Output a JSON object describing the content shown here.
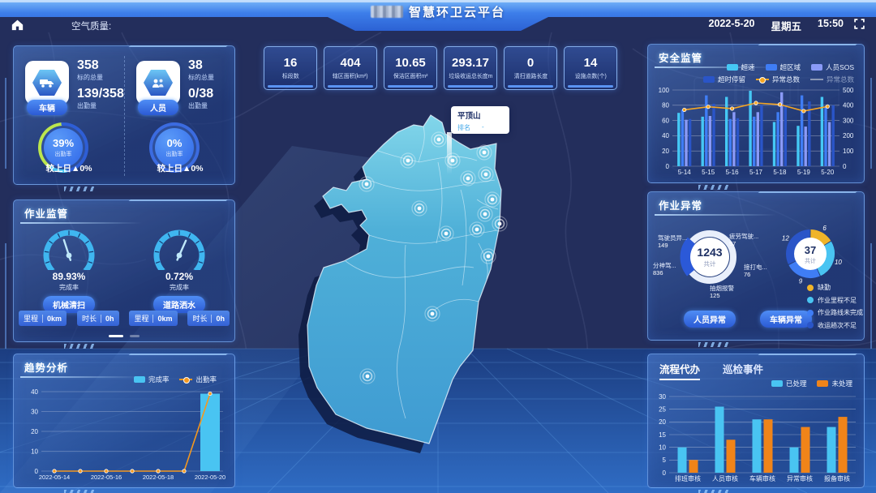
{
  "header": {
    "title": "智慧环卫云平台",
    "air_quality_label": "空气质量:",
    "date": "2022-5-20",
    "weekday": "星期五",
    "time": "15:50"
  },
  "kpis": [
    {
      "value": "16",
      "label": "标段数"
    },
    {
      "value": "404",
      "label": "辖区面积(km²)"
    },
    {
      "value": "10.65",
      "label": "保洁区面积m²"
    },
    {
      "value": "293.17",
      "label": "垃圾收运总长度m"
    },
    {
      "value": "0",
      "label": "清扫道路长度"
    },
    {
      "value": "14",
      "label": "设施点数(个)"
    }
  ],
  "attendance": {
    "vehicle": {
      "tag": "车辆",
      "total": "358",
      "total_label": "标的总量",
      "attend": "139/358",
      "attend_label": "出勤量",
      "rate": "39%",
      "rate_value": 39,
      "rate_label": "出勤率",
      "compare": "较上日▲0%"
    },
    "person": {
      "tag": "人员",
      "total": "38",
      "total_label": "标的总量",
      "attend": "0/38",
      "attend_label": "出勤量",
      "rate": "0%",
      "rate_value": 0,
      "rate_label": "出勤率",
      "compare": "较上日▲0%"
    }
  },
  "operation": {
    "title": "作业监管",
    "gauges": [
      {
        "value": "89.93%",
        "label": "完成率",
        "name": "机械清扫",
        "needle_deg": -18,
        "mileage_label": "里程",
        "mileage": "0km",
        "duration_label": "时长",
        "duration": "0h"
      },
      {
        "value": "0.72%",
        "label": "完成率",
        "name": "道路洒水",
        "needle_deg": 24,
        "mileage_label": "里程",
        "mileage": "0km",
        "duration_label": "时长",
        "duration": "0h"
      }
    ]
  },
  "trend": {
    "title": "趋势分析",
    "chart": {
      "type": "bar+line",
      "categories": [
        "2022-05-14",
        "2022-05-15",
        "2022-05-16",
        "2022-05-17",
        "2022-05-18",
        "2022-05-19",
        "2022-05-20"
      ],
      "x_tick_indices": [
        0,
        2,
        4,
        6
      ],
      "series": [
        {
          "name": "完成率",
          "type": "bar",
          "color": "#49c4f2",
          "values": [
            0,
            0,
            0,
            0,
            0,
            0,
            39
          ]
        },
        {
          "name": "出勤率",
          "type": "line",
          "color": "#f5981e",
          "values": [
            0,
            0,
            0,
            0,
            0,
            0,
            39
          ]
        }
      ],
      "ylim": [
        0,
        40
      ],
      "ystep": 10
    }
  },
  "safety": {
    "title": "安全监管",
    "chart": {
      "type": "bar+line",
      "categories": [
        "5-14",
        "5-15",
        "5-16",
        "5-17",
        "5-18",
        "5-19",
        "5-20"
      ],
      "series": [
        {
          "name": "超速",
          "type": "bar",
          "color": "#45c8f5",
          "values": [
            70,
            65,
            91,
            99,
            58,
            53,
            91
          ]
        },
        {
          "name": "超区域",
          "type": "bar",
          "color": "#3f7df5",
          "values": [
            74,
            93,
            62,
            65,
            71,
            93,
            78
          ]
        },
        {
          "name": "人员SOS",
          "type": "bar",
          "color": "#8a9af7",
          "values": [
            61,
            66,
            71,
            71,
            97,
            52,
            58
          ]
        },
        {
          "name": "超时停留",
          "type": "bar",
          "color": "#2a55c8",
          "values": [
            62,
            82,
            63,
            80,
            80,
            85,
            80
          ]
        },
        {
          "name": "异常总数",
          "type": "line",
          "axis": "right",
          "color": "#f5a623",
          "values": [
            370,
            390,
            378,
            415,
            405,
            362,
            392
          ]
        }
      ],
      "disabled_legend": "异常总数",
      "ylim": [
        0,
        100
      ],
      "ystep": 20,
      "y2lim": [
        0,
        500
      ],
      "y2step": 100
    }
  },
  "abnormal": {
    "title": "作业异常",
    "person_donut": {
      "total": "1243",
      "total_label": "共计",
      "button": "人员异常",
      "slices": [
        {
          "label": "驾驶员异...",
          "value": 149
        },
        {
          "label": "疲劳驾驶...",
          "value": 57
        },
        {
          "label": "分神驾...",
          "value": 836
        },
        {
          "label": "接打电...",
          "value": 76
        },
        {
          "label": "抽烟报警",
          "value": 125
        }
      ]
    },
    "vehicle_donut": {
      "total": "37",
      "total_label": "共计",
      "button": "车辆异常",
      "slices": [
        {
          "label": "缺勤",
          "value": 6,
          "color": "#f0b429"
        },
        {
          "label": "作业里程不足",
          "value": 10,
          "color": "#49c4f2"
        },
        {
          "label": "作业路线未完成",
          "value": 9,
          "color": "#3f7df5"
        },
        {
          "label": "收运趟次不足",
          "value": 12,
          "color": "#2a55c8"
        }
      ]
    }
  },
  "todo": {
    "tabs": [
      "流程代办",
      "巡检事件"
    ],
    "chart": {
      "type": "bar",
      "categories": [
        "排班审核",
        "人员审核",
        "车辆审核",
        "异常审核",
        "报备审核"
      ],
      "series": [
        {
          "name": "已处理",
          "type": "bar",
          "color": "#49c4f2",
          "values": [
            10,
            26,
            21,
            10,
            18
          ]
        },
        {
          "name": "未处理",
          "type": "bar",
          "color": "#f08419",
          "values": [
            5,
            13,
            21,
            18,
            22
          ]
        }
      ],
      "ylim": [
        0,
        30
      ],
      "ystep": 5
    }
  },
  "map": {
    "tooltip_title": "平顶山",
    "tooltip_rank_label": "排名",
    "tooltip_rank_value": "-"
  }
}
